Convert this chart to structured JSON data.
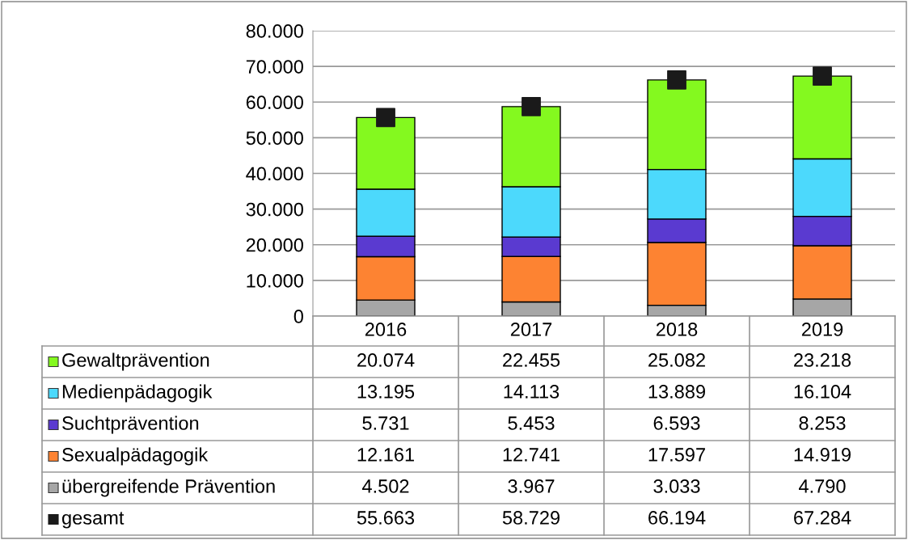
{
  "chart_data": {
    "type": "bar",
    "stacked": true,
    "categories": [
      "2016",
      "2017",
      "2018",
      "2019"
    ],
    "series": [
      {
        "name": "übergreifende Prävention",
        "color": "#a6a6a6",
        "values": [
          4502,
          3967,
          3033,
          4790
        ],
        "value_labels": [
          "4.502",
          "3.967",
          "3.033",
          "4.790"
        ]
      },
      {
        "name": "Sexualpädagogik",
        "color": "#fd8332",
        "values": [
          12161,
          12741,
          17597,
          14919
        ],
        "value_labels": [
          "12.161",
          "12.741",
          "17.597",
          "14.919"
        ]
      },
      {
        "name": "Suchtprävention",
        "color": "#5a3ad0",
        "values": [
          5731,
          5453,
          6593,
          8253
        ],
        "value_labels": [
          "5.731",
          "5.453",
          "6.593",
          "8.253"
        ]
      },
      {
        "name": "Medienpädagogik",
        "color": "#4cd9fc",
        "values": [
          13195,
          14113,
          13889,
          16104
        ],
        "value_labels": [
          "13.195",
          "14.113",
          "13.889",
          "16.104"
        ]
      },
      {
        "name": "Gewaltprävention",
        "color": "#84f91f",
        "values": [
          20074,
          22455,
          25082,
          23218
        ],
        "value_labels": [
          "20.074",
          "22.455",
          "25.082",
          "23.218"
        ]
      },
      {
        "name": "gesamt",
        "type": "scatter",
        "color": "#1a1a1a",
        "values": [
          55663,
          58729,
          66194,
          67284
        ],
        "value_labels": [
          "55.663",
          "58.729",
          "66.194",
          "67.284"
        ]
      }
    ],
    "ylim": [
      0,
      80000
    ],
    "yticks": [
      0,
      {
        "value": 10000,
        "label": "10.000"
      },
      {
        "value": 20000,
        "label": "20.000"
      },
      {
        "value": 30000,
        "label": "30.000"
      },
      {
        "value": 40000,
        "label": "40.000"
      },
      {
        "value": 50000,
        "label": "50.000"
      },
      {
        "value": 60000,
        "label": "60.000"
      },
      {
        "value": 70000,
        "label": "70.000"
      },
      {
        "value": 80000,
        "label": "80.000"
      }
    ],
    "grid": "y",
    "legend": "bottom",
    "marker": "square"
  }
}
